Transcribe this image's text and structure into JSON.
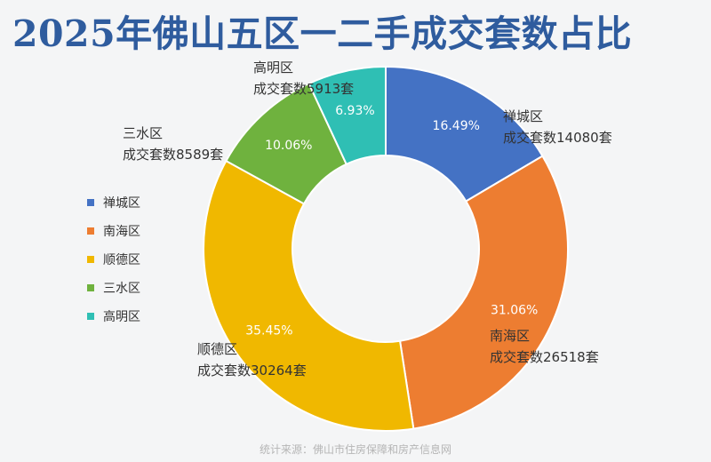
{
  "title": "2025年佛山五区一二手成交套数占比",
  "source_note": "统计来源：佛山市住房保障和房产信息网",
  "chart_data": {
    "type": "pie",
    "title": "2025年佛山五区一二手成交套数占比",
    "donut": true,
    "legend_position": "left",
    "slices": [
      {
        "name": "禅城区",
        "value": 14080,
        "percent": "16.49%",
        "label": "成交套数14080套",
        "color": "#4472c4"
      },
      {
        "name": "南海区",
        "value": 26518,
        "percent": "31.06%",
        "label": "成交套数26518套",
        "color": "#ed7d31"
      },
      {
        "name": "顺德区",
        "value": 30264,
        "percent": "35.45%",
        "label": "成交套数30264套",
        "color": "#f0b800"
      },
      {
        "name": "三水区",
        "value": 8589,
        "percent": "10.06%",
        "label": "成交套数8589套",
        "color": "#6fb23e"
      },
      {
        "name": "高明区",
        "value": 5913,
        "percent": "6.93%",
        "label": "成交套数5913套",
        "color": "#2fbfb4"
      }
    ]
  }
}
